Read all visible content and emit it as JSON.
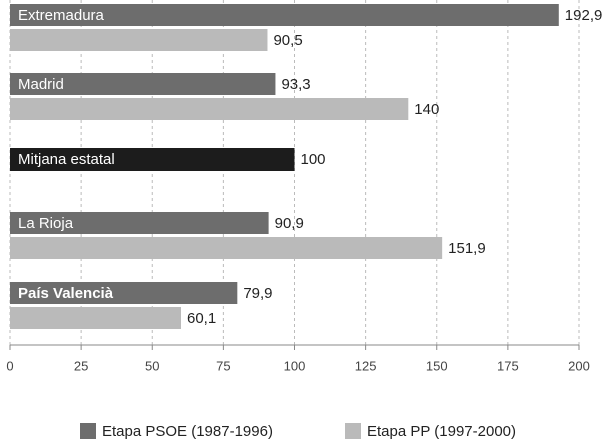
{
  "chart_data": {
    "type": "hbar",
    "categories": [
      "Extremadura",
      "Madrid",
      "Mitjana estatal",
      "La Rioja",
      "País Valencià"
    ],
    "series": [
      {
        "name": "Etapa PSOE (1987-1996)",
        "color": "#6d6d6d",
        "values": [
          192.9,
          93.3,
          null,
          90.9,
          79.9
        ],
        "value_labels": [
          "192,9",
          "93,3",
          null,
          "90,9",
          "79,9"
        ]
      },
      {
        "name": "Etapa PP (1997-2000)",
        "color": "#bababa",
        "values": [
          90.5,
          140,
          null,
          151.9,
          60.1
        ],
        "value_labels": [
          "90,5",
          "140",
          null,
          "151,9",
          "60,1"
        ]
      }
    ],
    "average": {
      "value": 100,
      "color": "#1c1c1c"
    },
    "xlim": [
      0,
      200
    ],
    "xticks": [
      0,
      25,
      50,
      75,
      100,
      125,
      150,
      175,
      200
    ],
    "grid": true
  }
}
